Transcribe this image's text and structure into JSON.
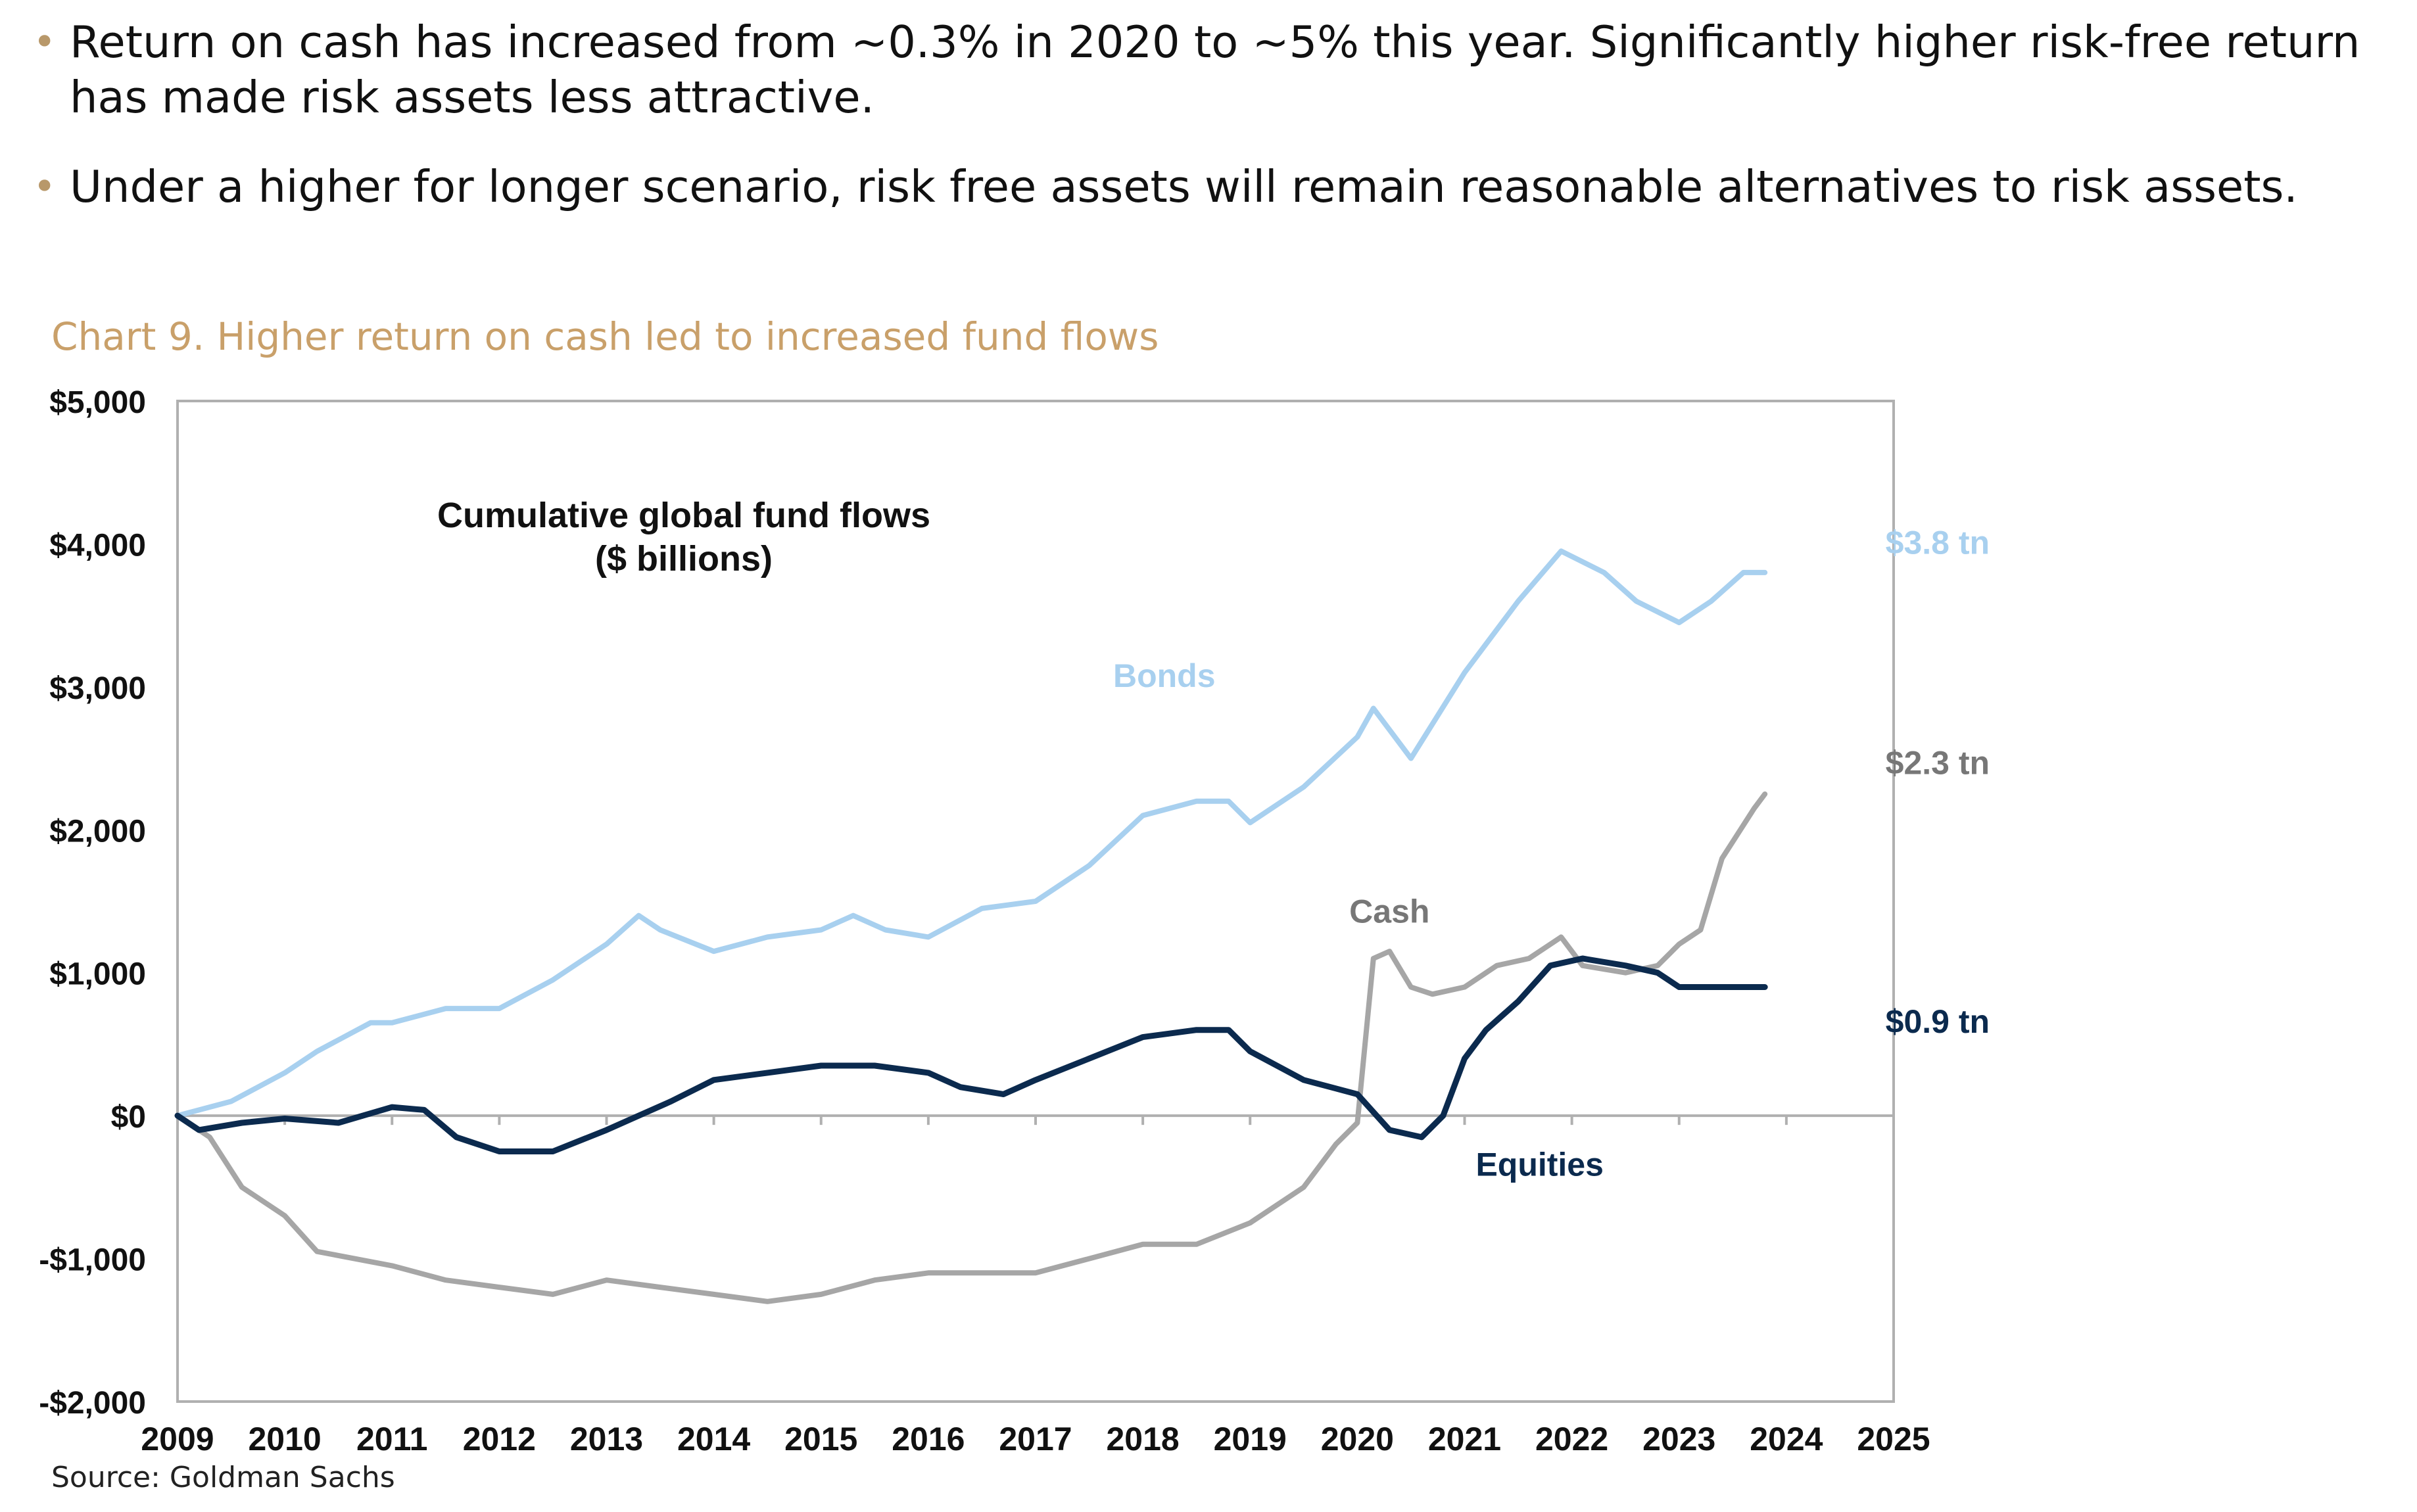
{
  "bullets": [
    {
      "text": "Return on cash has increased from ~0.3% in 2020 to ~5% this year. Significantly higher risk-free return has made risk assets less attractive."
    },
    {
      "text": "Under a higher for longer scenario, risk free assets will remain reasonable alternatives to risk assets."
    }
  ],
  "chart_title": "Chart 9. Higher return on cash led to increased fund flows",
  "source": "Source: Goldman Sachs",
  "colors": {
    "bonds": "#a8d0ef",
    "cash": "#a6a6a6",
    "equities": "#0b2a4e",
    "title": "#c9a06a",
    "bullet": "#b8986a"
  },
  "chart_data": {
    "type": "line",
    "title": "Cumulative global fund flows",
    "subtitle": "($ billions)",
    "xlabel": "",
    "ylabel": "",
    "xlim": [
      2009,
      2025
    ],
    "ylim": [
      -2000,
      5000
    ],
    "x_ticks": [
      2009,
      2010,
      2011,
      2012,
      2013,
      2014,
      2015,
      2016,
      2017,
      2018,
      2019,
      2020,
      2021,
      2022,
      2023,
      2024,
      2025
    ],
    "x_tick_labels": [
      "2009",
      "2010",
      "2011",
      "2012",
      "2013",
      "2014",
      "2015",
      "2016",
      "2017",
      "2018",
      "2019",
      "2020",
      "2021",
      "2022",
      "2023",
      "2024",
      "2025"
    ],
    "y_ticks": [
      5000,
      4000,
      3000,
      2000,
      1000,
      0,
      -1000,
      -2000
    ],
    "y_tick_labels": [
      "$5,000",
      "$4,000",
      "$3,000",
      "$2,000",
      "$1,000",
      "$0",
      "-$1,000",
      "-$2,000"
    ],
    "series": [
      {
        "name": "Bonds",
        "end_label": "$3.8 tn",
        "x": [
          2009,
          2009.5,
          2010,
          2010.3,
          2010.8,
          2011,
          2011.5,
          2012,
          2012.5,
          2013,
          2013.3,
          2013.5,
          2014,
          2014.5,
          2015,
          2015.3,
          2015.6,
          2016,
          2016.5,
          2017,
          2017.5,
          2018,
          2018.5,
          2018.8,
          2019,
          2019.5,
          2020,
          2020.15,
          2020.5,
          2021,
          2021.5,
          2021.9,
          2022.3,
          2022.6,
          2023,
          2023.3,
          2023.6,
          2023.8
        ],
        "values": [
          0,
          100,
          300,
          450,
          650,
          650,
          750,
          750,
          950,
          1200,
          1400,
          1300,
          1150,
          1250,
          1300,
          1400,
          1300,
          1250,
          1450,
          1500,
          1750,
          2100,
          2200,
          2200,
          2050,
          2300,
          2650,
          2850,
          2500,
          3100,
          3600,
          3950,
          3800,
          3600,
          3450,
          3600,
          3800,
          3800
        ]
      },
      {
        "name": "Cash",
        "end_label": "$2.3 tn",
        "x": [
          2009,
          2009.3,
          2009.6,
          2010,
          2010.3,
          2011,
          2011.5,
          2012,
          2012.5,
          2013,
          2013.5,
          2014,
          2014.5,
          2015,
          2015.5,
          2016,
          2016.5,
          2017,
          2017.5,
          2018,
          2018.5,
          2019,
          2019.5,
          2019.8,
          2020,
          2020.15,
          2020.3,
          2020.5,
          2020.7,
          2021,
          2021.3,
          2021.6,
          2021.9,
          2022.1,
          2022.5,
          2022.8,
          2023,
          2023.2,
          2023.4,
          2023.7,
          2023.8
        ],
        "values": [
          0,
          -150,
          -500,
          -700,
          -950,
          -1050,
          -1150,
          -1200,
          -1250,
          -1150,
          -1200,
          -1250,
          -1300,
          -1250,
          -1150,
          -1100,
          -1100,
          -1100,
          -1000,
          -900,
          -900,
          -750,
          -500,
          -200,
          -50,
          1100,
          1150,
          900,
          850,
          900,
          1050,
          1100,
          1250,
          1050,
          1000,
          1050,
          1200,
          1300,
          1800,
          2150,
          2250
        ]
      },
      {
        "name": "Equities",
        "end_label": "$0.9 tn",
        "x": [
          2009,
          2009.2,
          2009.6,
          2010,
          2010.5,
          2011,
          2011.3,
          2011.6,
          2012,
          2012.5,
          2013,
          2013.3,
          2013.6,
          2014,
          2014.5,
          2015,
          2015.5,
          2016,
          2016.3,
          2016.7,
          2017,
          2017.5,
          2018,
          2018.5,
          2018.8,
          2019,
          2019.5,
          2020,
          2020.3,
          2020.6,
          2020.8,
          2021,
          2021.2,
          2021.5,
          2021.8,
          2022.1,
          2022.5,
          2022.8,
          2023,
          2023.5,
          2023.8
        ],
        "values": [
          0,
          -100,
          -50,
          -20,
          -50,
          60,
          40,
          -150,
          -250,
          -250,
          -100,
          0,
          100,
          250,
          300,
          350,
          350,
          300,
          200,
          150,
          250,
          400,
          550,
          600,
          600,
          450,
          250,
          150,
          -100,
          -150,
          0,
          400,
          600,
          800,
          1050,
          1100,
          1050,
          1000,
          900,
          900,
          900
        ]
      }
    ],
    "annotations": [
      "Bonds",
      "Cash",
      "Equities",
      "$3.8 tn",
      "$2.3 tn",
      "$0.9 tn"
    ]
  }
}
